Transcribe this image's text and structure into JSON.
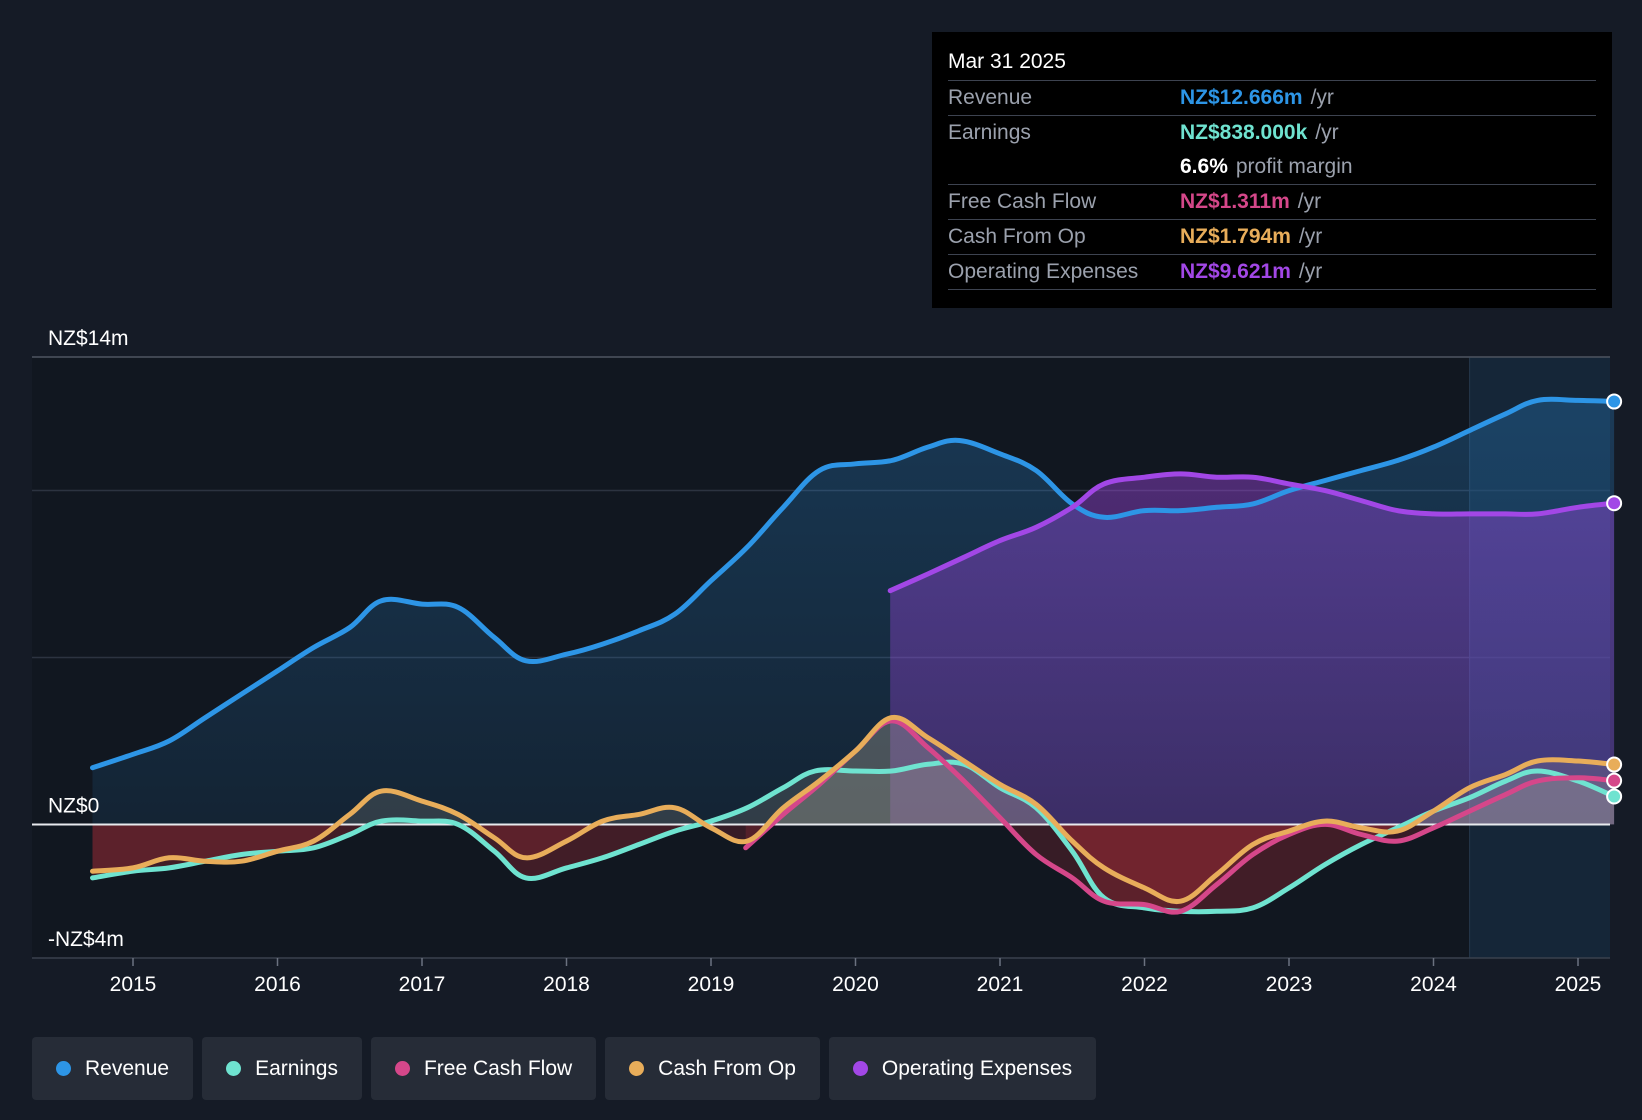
{
  "tooltip": {
    "date": "Mar 31 2025",
    "rows": [
      {
        "label": "Revenue",
        "value": "NZ$12.666m",
        "unit": "/yr",
        "color": "#2d95e6"
      },
      {
        "label": "Earnings",
        "value": "NZ$838.000k",
        "unit": "/yr",
        "color": "#6fe3d0"
      },
      {
        "label": "",
        "value": "6.6%",
        "unit": "profit margin",
        "color": "#ffffff"
      },
      {
        "label": "Free Cash Flow",
        "value": "NZ$1.311m",
        "unit": "/yr",
        "color": "#d5478a"
      },
      {
        "label": "Cash From Op",
        "value": "NZ$1.794m",
        "unit": "/yr",
        "color": "#e8ad5a"
      },
      {
        "label": "Operating Expenses",
        "value": "NZ$9.621m",
        "unit": "/yr",
        "color": "#a247e6"
      }
    ]
  },
  "legend": [
    {
      "label": "Revenue",
      "color": "#2d95e6"
    },
    {
      "label": "Earnings",
      "color": "#6fe3d0"
    },
    {
      "label": "Free Cash Flow",
      "color": "#d5478a"
    },
    {
      "label": "Cash From Op",
      "color": "#e8ad5a"
    },
    {
      "label": "Operating Expenses",
      "color": "#a247e6"
    }
  ],
  "chart_data": {
    "type": "area",
    "title": "",
    "xlabel": "",
    "ylabel": "",
    "currency": "NZ$",
    "xlim": [
      2014.7,
      2025.25
    ],
    "ylim": [
      -4,
      14
    ],
    "y_tick_labels": [
      {
        "value": 14,
        "label": "NZ$14m"
      },
      {
        "value": 0,
        "label": "NZ$0"
      },
      {
        "value": -4,
        "label": "-NZ$4m"
      }
    ],
    "gridlines_at": [
      14,
      10,
      5,
      0
    ],
    "x_ticks": [
      2015,
      2016,
      2017,
      2018,
      2019,
      2020,
      2021,
      2022,
      2023,
      2024,
      2025
    ],
    "x_tick_labels": [
      "2015",
      "2016",
      "2017",
      "2018",
      "2019",
      "2020",
      "2021",
      "2022",
      "2023",
      "2024",
      "2025"
    ],
    "forecast_highlight_start": 2024.25,
    "series": [
      {
        "name": "Revenue",
        "color": "#2d95e6",
        "points": [
          [
            2014.72,
            1.7
          ],
          [
            2015.0,
            2.1
          ],
          [
            2015.25,
            2.5
          ],
          [
            2015.5,
            3.2
          ],
          [
            2015.75,
            3.9
          ],
          [
            2016.0,
            4.6
          ],
          [
            2016.25,
            5.3
          ],
          [
            2016.5,
            5.9
          ],
          [
            2016.72,
            6.7
          ],
          [
            2017.0,
            6.6
          ],
          [
            2017.25,
            6.5
          ],
          [
            2017.5,
            5.6
          ],
          [
            2017.72,
            4.9
          ],
          [
            2018.0,
            5.1
          ],
          [
            2018.25,
            5.4
          ],
          [
            2018.5,
            5.8
          ],
          [
            2018.75,
            6.3
          ],
          [
            2019.0,
            7.3
          ],
          [
            2019.25,
            8.3
          ],
          [
            2019.5,
            9.5
          ],
          [
            2019.75,
            10.6
          ],
          [
            2020.0,
            10.8
          ],
          [
            2020.25,
            10.9
          ],
          [
            2020.5,
            11.3
          ],
          [
            2020.72,
            11.5
          ],
          [
            2021.0,
            11.1
          ],
          [
            2021.25,
            10.6
          ],
          [
            2021.5,
            9.6
          ],
          [
            2021.72,
            9.2
          ],
          [
            2022.0,
            9.4
          ],
          [
            2022.25,
            9.4
          ],
          [
            2022.5,
            9.5
          ],
          [
            2022.75,
            9.6
          ],
          [
            2023.0,
            10.0
          ],
          [
            2023.25,
            10.3
          ],
          [
            2023.5,
            10.6
          ],
          [
            2023.75,
            10.9
          ],
          [
            2024.0,
            11.3
          ],
          [
            2024.25,
            11.8
          ],
          [
            2024.5,
            12.3
          ],
          [
            2024.72,
            12.7
          ],
          [
            2025.0,
            12.7
          ],
          [
            2025.25,
            12.666
          ]
        ]
      },
      {
        "name": "Earnings",
        "color": "#6fe3d0",
        "points": [
          [
            2014.72,
            -1.6
          ],
          [
            2015.0,
            -1.4
          ],
          [
            2015.25,
            -1.3
          ],
          [
            2015.5,
            -1.1
          ],
          [
            2015.75,
            -0.9
          ],
          [
            2016.0,
            -0.8
          ],
          [
            2016.25,
            -0.7
          ],
          [
            2016.5,
            -0.3
          ],
          [
            2016.72,
            0.1
          ],
          [
            2017.0,
            0.1
          ],
          [
            2017.25,
            0.0
          ],
          [
            2017.5,
            -0.8
          ],
          [
            2017.72,
            -1.6
          ],
          [
            2018.0,
            -1.3
          ],
          [
            2018.25,
            -1.0
          ],
          [
            2018.5,
            -0.6
          ],
          [
            2018.75,
            -0.2
          ],
          [
            2019.0,
            0.1
          ],
          [
            2019.25,
            0.5
          ],
          [
            2019.5,
            1.1
          ],
          [
            2019.72,
            1.6
          ],
          [
            2020.0,
            1.6
          ],
          [
            2020.25,
            1.6
          ],
          [
            2020.5,
            1.8
          ],
          [
            2020.75,
            1.8
          ],
          [
            2021.0,
            1.1
          ],
          [
            2021.25,
            0.5
          ],
          [
            2021.5,
            -0.8
          ],
          [
            2021.72,
            -2.2
          ],
          [
            2022.0,
            -2.5
          ],
          [
            2022.25,
            -2.6
          ],
          [
            2022.5,
            -2.6
          ],
          [
            2022.75,
            -2.5
          ],
          [
            2023.0,
            -1.9
          ],
          [
            2023.25,
            -1.2
          ],
          [
            2023.5,
            -0.6
          ],
          [
            2023.75,
            -0.1
          ],
          [
            2024.0,
            0.4
          ],
          [
            2024.25,
            0.8
          ],
          [
            2024.5,
            1.3
          ],
          [
            2024.72,
            1.6
          ],
          [
            2025.0,
            1.3
          ],
          [
            2025.25,
            0.838
          ]
        ]
      },
      {
        "name": "Free Cash Flow",
        "color": "#d5478a",
        "points": [
          [
            2019.24,
            -0.7
          ],
          [
            2019.5,
            0.3
          ],
          [
            2019.75,
            1.2
          ],
          [
            2020.0,
            2.2
          ],
          [
            2020.25,
            3.1
          ],
          [
            2020.5,
            2.3
          ],
          [
            2020.75,
            1.3
          ],
          [
            2021.0,
            0.2
          ],
          [
            2021.25,
            -0.9
          ],
          [
            2021.5,
            -1.6
          ],
          [
            2021.72,
            -2.3
          ],
          [
            2022.0,
            -2.4
          ],
          [
            2022.25,
            -2.6
          ],
          [
            2022.5,
            -1.8
          ],
          [
            2022.75,
            -0.9
          ],
          [
            2023.0,
            -0.3
          ],
          [
            2023.25,
            0.0
          ],
          [
            2023.5,
            -0.3
          ],
          [
            2023.75,
            -0.5
          ],
          [
            2024.0,
            -0.1
          ],
          [
            2024.25,
            0.4
          ],
          [
            2024.5,
            0.9
          ],
          [
            2024.72,
            1.3
          ],
          [
            2025.0,
            1.4
          ],
          [
            2025.25,
            1.311
          ]
        ]
      },
      {
        "name": "Cash From Op",
        "color": "#e8ad5a",
        "points": [
          [
            2014.72,
            -1.4
          ],
          [
            2015.0,
            -1.3
          ],
          [
            2015.25,
            -1.0
          ],
          [
            2015.5,
            -1.1
          ],
          [
            2015.75,
            -1.1
          ],
          [
            2016.0,
            -0.8
          ],
          [
            2016.25,
            -0.5
          ],
          [
            2016.5,
            0.3
          ],
          [
            2016.72,
            1.0
          ],
          [
            2017.0,
            0.7
          ],
          [
            2017.25,
            0.3
          ],
          [
            2017.5,
            -0.4
          ],
          [
            2017.72,
            -1.0
          ],
          [
            2018.0,
            -0.5
          ],
          [
            2018.25,
            0.1
          ],
          [
            2018.5,
            0.3
          ],
          [
            2018.75,
            0.5
          ],
          [
            2019.0,
            -0.1
          ],
          [
            2019.25,
            -0.5
          ],
          [
            2019.5,
            0.5
          ],
          [
            2019.75,
            1.3
          ],
          [
            2020.0,
            2.2
          ],
          [
            2020.25,
            3.2
          ],
          [
            2020.5,
            2.6
          ],
          [
            2020.75,
            1.9
          ],
          [
            2021.0,
            1.2
          ],
          [
            2021.25,
            0.6
          ],
          [
            2021.5,
            -0.5
          ],
          [
            2021.72,
            -1.3
          ],
          [
            2022.0,
            -1.9
          ],
          [
            2022.25,
            -2.3
          ],
          [
            2022.5,
            -1.5
          ],
          [
            2022.75,
            -0.6
          ],
          [
            2023.0,
            -0.2
          ],
          [
            2023.25,
            0.1
          ],
          [
            2023.5,
            -0.1
          ],
          [
            2023.75,
            -0.2
          ],
          [
            2024.0,
            0.4
          ],
          [
            2024.25,
            1.1
          ],
          [
            2024.5,
            1.5
          ],
          [
            2024.72,
            1.9
          ],
          [
            2025.0,
            1.9
          ],
          [
            2025.25,
            1.794
          ]
        ]
      },
      {
        "name": "Operating Expenses",
        "color": "#a247e6",
        "points": [
          [
            2020.24,
            7.0
          ],
          [
            2020.5,
            7.5
          ],
          [
            2020.75,
            8.0
          ],
          [
            2021.0,
            8.5
          ],
          [
            2021.25,
            8.9
          ],
          [
            2021.5,
            9.5
          ],
          [
            2021.72,
            10.2
          ],
          [
            2022.0,
            10.4
          ],
          [
            2022.25,
            10.5
          ],
          [
            2022.5,
            10.4
          ],
          [
            2022.75,
            10.4
          ],
          [
            2023.0,
            10.2
          ],
          [
            2023.25,
            10.0
          ],
          [
            2023.5,
            9.7
          ],
          [
            2023.75,
            9.4
          ],
          [
            2024.0,
            9.3
          ],
          [
            2024.25,
            9.3
          ],
          [
            2024.5,
            9.3
          ],
          [
            2024.72,
            9.3
          ],
          [
            2025.0,
            9.5
          ],
          [
            2025.25,
            9.621
          ]
        ]
      }
    ]
  }
}
